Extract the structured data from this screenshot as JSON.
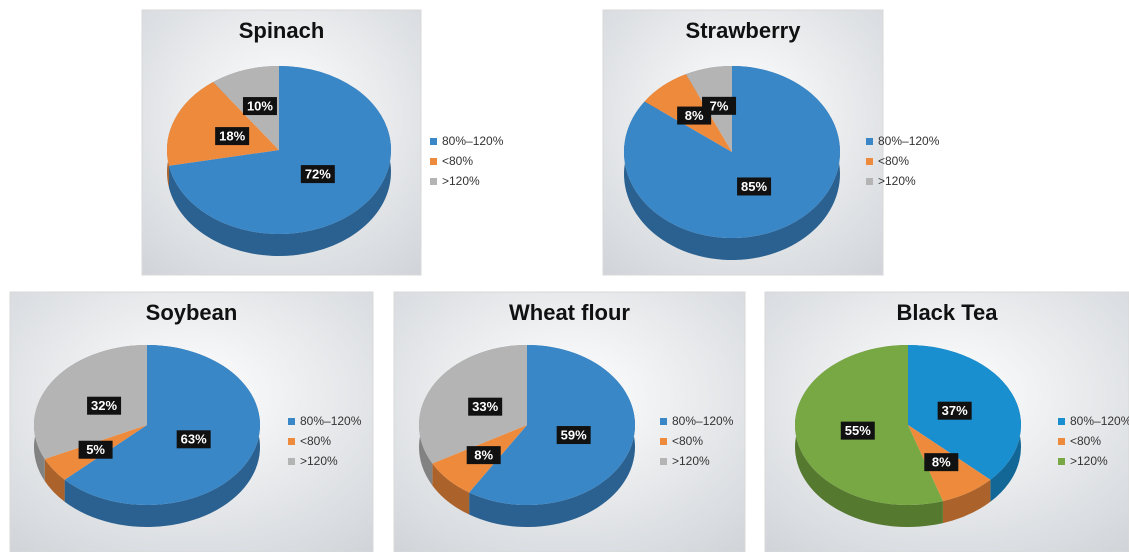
{
  "chart_data": [
    {
      "type": "pie",
      "title": "Spinach",
      "categories": [
        "80%–120%",
        "<80%",
        ">120%"
      ],
      "values": [
        72,
        18,
        10
      ],
      "value_labels": [
        "72%",
        "18%",
        "10%"
      ],
      "colors": [
        "#3a87c8",
        "#ee8a3c",
        "#b4b4b4"
      ],
      "legend": "right"
    },
    {
      "type": "pie",
      "title": "Strawberry",
      "categories": [
        "80%–120%",
        "<80%",
        ">120%"
      ],
      "values": [
        85,
        8,
        7
      ],
      "value_labels": [
        "85%",
        "8%",
        "7%"
      ],
      "colors": [
        "#3a87c8",
        "#ee8a3c",
        "#b4b4b4"
      ],
      "legend": "right"
    },
    {
      "type": "pie",
      "title": "Soybean",
      "categories": [
        "80%–120%",
        "<80%",
        ">120%"
      ],
      "values": [
        63,
        5,
        32
      ],
      "value_labels": [
        "63%",
        "5%",
        "32%"
      ],
      "colors": [
        "#3a87c8",
        "#ee8a3c",
        "#b4b4b4"
      ],
      "legend": "right"
    },
    {
      "type": "pie",
      "title": "Wheat flour",
      "categories": [
        "80%–120%",
        "<80%",
        ">120%"
      ],
      "values": [
        59,
        8,
        33
      ],
      "value_labels": [
        "59%",
        "8%",
        "33%"
      ],
      "colors": [
        "#3a87c8",
        "#ee8a3c",
        "#b4b4b4"
      ],
      "legend": "right"
    },
    {
      "type": "pie",
      "title": "Black Tea",
      "categories": [
        "80%–120%",
        "<80%",
        ">120%"
      ],
      "values": [
        37,
        8,
        55
      ],
      "value_labels": [
        "37%",
        "8%",
        "55%"
      ],
      "colors": [
        "#1a8fd0",
        "#ee8a3c",
        "#78a843"
      ],
      "legend": "right"
    }
  ]
}
